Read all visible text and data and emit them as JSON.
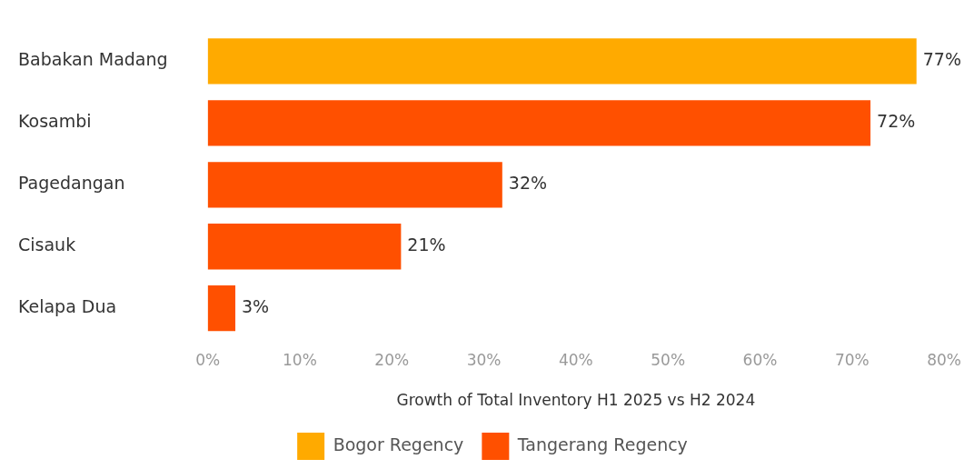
{
  "chart_data": {
    "type": "bar",
    "orientation": "horizontal",
    "xlabel": "Growth of Total Inventory H1 2025 vs H2 2024",
    "categories": [
      "Babakan Madang",
      "Kosambi",
      "Pagedangan",
      "Cisauk",
      "Kelapa Dua"
    ],
    "series": [
      {
        "name": "Bogor Regency",
        "color": "#ffaa00",
        "values": [
          77,
          null,
          null,
          null,
          null
        ],
        "value_labels": [
          "77%",
          null,
          null,
          null,
          null
        ]
      },
      {
        "name": "Tangerang Regency",
        "color": "#ff5000",
        "values": [
          null,
          72,
          32,
          21,
          3
        ],
        "value_labels": [
          null,
          "72%",
          "32%",
          "21%",
          "3%"
        ]
      }
    ],
    "xlim": [
      0,
      80
    ],
    "xticks": [
      {
        "value": 0,
        "label": "0%"
      },
      {
        "value": 10,
        "label": "10%"
      },
      {
        "value": 20,
        "label": "20%"
      },
      {
        "value": 30,
        "label": "30%"
      },
      {
        "value": 40,
        "label": "40%"
      },
      {
        "value": 50,
        "label": "50%"
      },
      {
        "value": 60,
        "label": "60%"
      },
      {
        "value": 70,
        "label": "70%"
      },
      {
        "value": 80,
        "label": "80%"
      }
    ],
    "grid": false,
    "legend": "bottom"
  }
}
